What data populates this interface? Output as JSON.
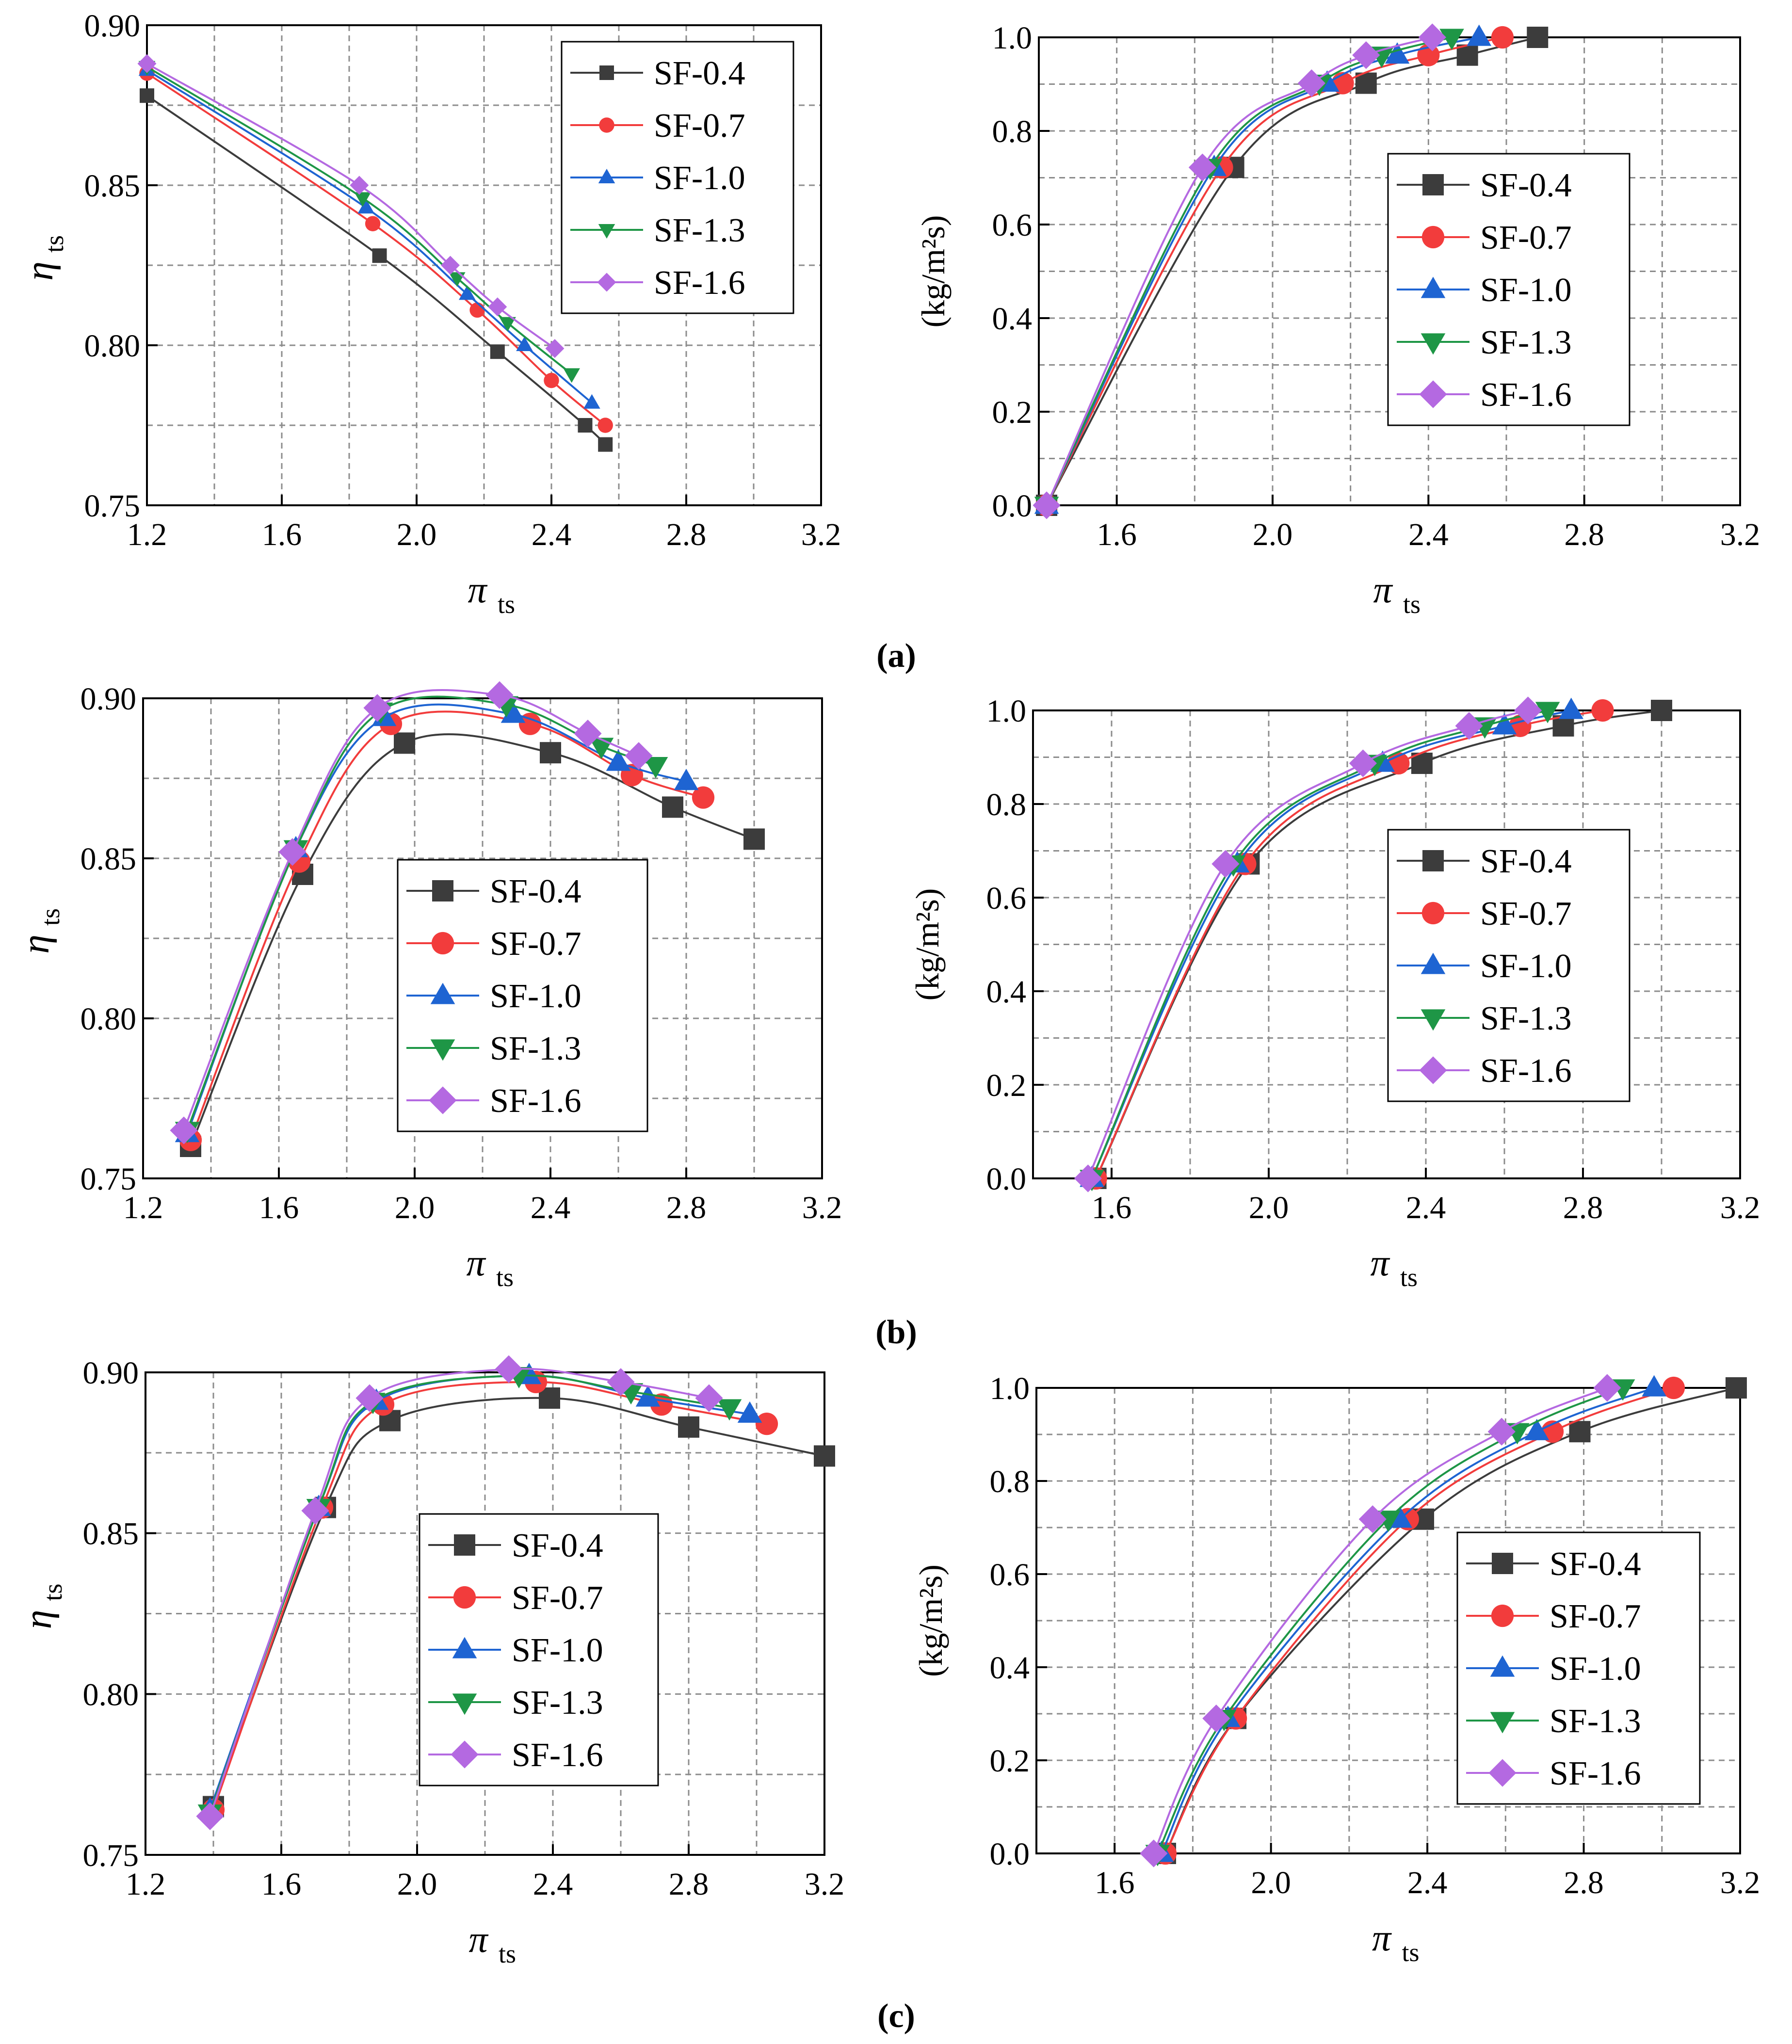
{
  "series_styles": [
    {
      "name": "SF-0.4",
      "color": "#3c3c3c",
      "marker": "square"
    },
    {
      "name": "SF-0.7",
      "color": "#f23c3c",
      "marker": "circle"
    },
    {
      "name": "SF-1.0",
      "color": "#1e64d2",
      "marker": "triangle-up"
    },
    {
      "name": "SF-1.3",
      "color": "#1e9646",
      "marker": "triangle-down"
    },
    {
      "name": "SF-1.6",
      "color": "#b469e1",
      "marker": "diamond"
    }
  ],
  "panel_labels": [
    "(a)",
    "(b)",
    "(c)"
  ],
  "chart_data": [
    {
      "id": "a-eff",
      "panel": "a",
      "type": "line",
      "xlabel": "π",
      "xlabel_sub": "ts",
      "ylabel": "η",
      "ylabel_sub": "ts",
      "xlim": [
        1.2,
        3.2
      ],
      "ylim": [
        0.75,
        0.9
      ],
      "xticks": [
        1.2,
        1.6,
        2.0,
        2.4,
        2.8,
        3.2
      ],
      "xtick_labels": [
        "1.2",
        "1.6",
        "2.0",
        "2.4",
        "2.8",
        "3.2"
      ],
      "yticks": [
        0.75,
        0.8,
        0.85,
        0.9
      ],
      "ytick_labels": [
        "0.75",
        "0.80",
        "0.85",
        "0.90"
      ],
      "grid": true,
      "legend": "top-right",
      "series": [
        {
          "name": "SF-0.4",
          "x": [
            1.2,
            1.89,
            2.24,
            2.5,
            2.56
          ],
          "y": [
            0.878,
            0.828,
            0.798,
            0.775,
            0.769
          ]
        },
        {
          "name": "SF-0.7",
          "x": [
            1.2,
            1.87,
            2.18,
            2.4,
            2.56
          ],
          "y": [
            0.885,
            0.838,
            0.811,
            0.789,
            0.775
          ]
        },
        {
          "name": "SF-1.0",
          "x": [
            1.2,
            1.85,
            2.15,
            2.32,
            2.52
          ],
          "y": [
            0.886,
            0.843,
            0.816,
            0.8,
            0.782
          ]
        },
        {
          "name": "SF-1.3",
          "x": [
            1.2,
            1.84,
            2.12,
            2.27,
            2.46
          ],
          "y": [
            0.887,
            0.846,
            0.821,
            0.807,
            0.791
          ]
        },
        {
          "name": "SF-1.6",
          "x": [
            1.2,
            1.83,
            2.1,
            2.24,
            2.41
          ],
          "y": [
            0.888,
            0.85,
            0.825,
            0.812,
            0.799
          ]
        }
      ]
    },
    {
      "id": "a-flow",
      "panel": "a",
      "type": "line",
      "xlabel": "π",
      "xlabel_sub": "ts",
      "ylabel": "(kg/m²s)",
      "xlim": [
        1.4,
        3.2
      ],
      "ylim": [
        0.0,
        1.0
      ],
      "xticks": [
        1.6,
        2.0,
        2.4,
        2.8,
        3.2
      ],
      "xtick_labels": [
        "1.6",
        "2.0",
        "2.4",
        "2.8",
        "3.2"
      ],
      "yticks": [
        0.0,
        0.2,
        0.4,
        0.6,
        0.8,
        1.0
      ],
      "ytick_labels": [
        "0.0",
        "0.2",
        "0.4",
        "0.6",
        "0.8",
        "1.0"
      ],
      "grid": true,
      "legend": "center-right",
      "series": [
        {
          "name": "SF-0.4",
          "x": [
            1.42,
            1.9,
            2.24,
            2.5,
            2.68
          ],
          "y": [
            0.0,
            0.722,
            0.902,
            0.962,
            1.0
          ]
        },
        {
          "name": "SF-0.7",
          "x": [
            1.42,
            1.87,
            2.18,
            2.4,
            2.59
          ],
          "y": [
            0.0,
            0.722,
            0.902,
            0.962,
            1.0
          ]
        },
        {
          "name": "SF-1.0",
          "x": [
            1.42,
            1.85,
            2.14,
            2.32,
            2.53
          ],
          "y": [
            0.0,
            0.722,
            0.902,
            0.962,
            1.0
          ]
        },
        {
          "name": "SF-1.3",
          "x": [
            1.42,
            1.84,
            2.12,
            2.28,
            2.46
          ],
          "y": [
            0.0,
            0.722,
            0.902,
            0.962,
            1.0
          ]
        },
        {
          "name": "SF-1.6",
          "x": [
            1.42,
            1.82,
            2.1,
            2.24,
            2.41
          ],
          "y": [
            0.0,
            0.722,
            0.902,
            0.962,
            1.0
          ]
        }
      ]
    },
    {
      "id": "b-eff",
      "panel": "b",
      "type": "line",
      "xlabel": "π",
      "xlabel_sub": "ts",
      "ylabel": "η",
      "ylabel_sub": "ts",
      "xlim": [
        1.2,
        3.2
      ],
      "ylim": [
        0.75,
        0.9
      ],
      "xticks": [
        1.2,
        1.6,
        2.0,
        2.4,
        2.8,
        3.2
      ],
      "xtick_labels": [
        "1.2",
        "1.6",
        "2.0",
        "2.4",
        "2.8",
        "3.2"
      ],
      "yticks": [
        0.75,
        0.8,
        0.85,
        0.9
      ],
      "ytick_labels": [
        "0.75",
        "0.80",
        "0.85",
        "0.90"
      ],
      "grid": true,
      "legend": "center",
      "series": [
        {
          "name": "SF-0.4",
          "x": [
            1.34,
            1.67,
            1.97,
            2.4,
            2.76,
            3.0
          ],
          "y": [
            0.76,
            0.845,
            0.886,
            0.883,
            0.866,
            0.856
          ]
        },
        {
          "name": "SF-0.7",
          "x": [
            1.34,
            1.66,
            1.93,
            2.34,
            2.64,
            2.85
          ],
          "y": [
            0.762,
            0.849,
            0.892,
            0.892,
            0.876,
            0.869
          ]
        },
        {
          "name": "SF-1.0",
          "x": [
            1.33,
            1.65,
            1.91,
            2.29,
            2.6,
            2.8
          ],
          "y": [
            0.764,
            0.853,
            0.894,
            0.895,
            0.88,
            0.874
          ]
        },
        {
          "name": "SF-1.3",
          "x": [
            1.33,
            1.65,
            1.9,
            2.27,
            2.55,
            2.71
          ],
          "y": [
            0.765,
            0.853,
            0.896,
            0.898,
            0.885,
            0.879
          ]
        },
        {
          "name": "SF-1.6",
          "x": [
            1.32,
            1.64,
            1.89,
            2.25,
            2.51,
            2.66
          ],
          "y": [
            0.765,
            0.852,
            0.897,
            0.901,
            0.889,
            0.882
          ]
        }
      ]
    },
    {
      "id": "b-flow",
      "panel": "b",
      "type": "line",
      "xlabel": "π",
      "xlabel_sub": "ts",
      "ylabel": "(kg/m²s)",
      "xlim": [
        1.4,
        3.2
      ],
      "ylim": [
        0.0,
        1.0
      ],
      "xticks": [
        1.6,
        2.0,
        2.4,
        2.8,
        3.2
      ],
      "xtick_labels": [
        "1.6",
        "2.0",
        "2.4",
        "2.8",
        "3.2"
      ],
      "yticks": [
        0.0,
        0.2,
        0.4,
        0.6,
        0.8,
        1.0
      ],
      "ytick_labels": [
        "0.0",
        "0.2",
        "0.4",
        "0.6",
        "0.8",
        "1.0"
      ],
      "grid": true,
      "legend": "center-right",
      "series": [
        {
          "name": "SF-0.4",
          "x": [
            1.56,
            1.95,
            2.39,
            2.75,
            3.0
          ],
          "y": [
            0.0,
            0.672,
            0.887,
            0.967,
            1.0
          ]
        },
        {
          "name": "SF-0.7",
          "x": [
            1.56,
            1.94,
            2.33,
            2.64,
            2.85
          ],
          "y": [
            0.0,
            0.672,
            0.887,
            0.967,
            1.0
          ]
        },
        {
          "name": "SF-1.0",
          "x": [
            1.55,
            1.92,
            2.29,
            2.6,
            2.77
          ],
          "y": [
            0.0,
            0.672,
            0.887,
            0.967,
            1.0
          ]
        },
        {
          "name": "SF-1.3",
          "x": [
            1.55,
            1.91,
            2.27,
            2.55,
            2.71
          ],
          "y": [
            0.0,
            0.672,
            0.887,
            0.967,
            1.0
          ]
        },
        {
          "name": "SF-1.6",
          "x": [
            1.54,
            1.89,
            2.24,
            2.51,
            2.66
          ],
          "y": [
            0.0,
            0.672,
            0.887,
            0.967,
            1.0
          ]
        }
      ]
    },
    {
      "id": "c-eff",
      "panel": "c",
      "type": "line",
      "xlabel": "π",
      "xlabel_sub": "ts",
      "ylabel": "η",
      "ylabel_sub": "ts",
      "xlim": [
        1.2,
        3.2
      ],
      "ylim": [
        0.75,
        0.9
      ],
      "xticks": [
        1.2,
        1.6,
        2.0,
        2.4,
        2.8,
        3.2
      ],
      "xtick_labels": [
        "1.2",
        "1.6",
        "2.0",
        "2.4",
        "2.8",
        "3.2"
      ],
      "yticks": [
        0.75,
        0.8,
        0.85,
        0.9
      ],
      "ytick_labels": [
        "0.75",
        "0.80",
        "0.85",
        "0.90"
      ],
      "grid": true,
      "legend": "center",
      "series": [
        {
          "name": "SF-0.4",
          "x": [
            1.4,
            1.73,
            1.92,
            2.39,
            2.8,
            3.2
          ],
          "y": [
            0.765,
            0.858,
            0.885,
            0.892,
            0.883,
            0.874
          ]
        },
        {
          "name": "SF-0.7",
          "x": [
            1.4,
            1.72,
            1.9,
            2.35,
            2.72,
            3.03
          ],
          "y": [
            0.764,
            0.858,
            0.89,
            0.897,
            0.89,
            0.884
          ]
        },
        {
          "name": "SF-1.0",
          "x": [
            1.39,
            1.71,
            1.88,
            2.33,
            2.68,
            2.98
          ],
          "y": [
            0.764,
            0.858,
            0.891,
            0.899,
            0.892,
            0.887
          ]
        },
        {
          "name": "SF-1.3",
          "x": [
            1.39,
            1.71,
            1.87,
            2.3,
            2.63,
            2.92
          ],
          "y": [
            0.763,
            0.858,
            0.891,
            0.899,
            0.894,
            0.889
          ]
        },
        {
          "name": "SF-1.6",
          "x": [
            1.39,
            1.7,
            1.86,
            2.27,
            2.6,
            2.86
          ],
          "y": [
            0.762,
            0.857,
            0.892,
            0.901,
            0.897,
            0.892
          ]
        }
      ]
    },
    {
      "id": "c-flow",
      "panel": "c",
      "type": "line",
      "xlabel": "π",
      "xlabel_sub": "ts",
      "ylabel": "(kg/m²s)",
      "xlim": [
        1.4,
        3.2
      ],
      "ylim": [
        0.0,
        1.0
      ],
      "xticks": [
        1.6,
        2.0,
        2.4,
        2.8,
        3.2
      ],
      "xtick_labels": [
        "1.6",
        "2.0",
        "2.4",
        "2.8",
        "3.2"
      ],
      "yticks": [
        0.0,
        0.2,
        0.4,
        0.6,
        0.8,
        1.0
      ],
      "ytick_labels": [
        "0.0",
        "0.2",
        "0.4",
        "0.6",
        "0.8",
        "1.0"
      ],
      "grid": true,
      "legend": "bottom-right",
      "series": [
        {
          "name": "SF-0.4",
          "x": [
            1.73,
            1.91,
            2.39,
            2.79,
            3.19
          ],
          "y": [
            0.0,
            0.29,
            0.718,
            0.906,
            1.0
          ]
        },
        {
          "name": "SF-0.7",
          "x": [
            1.73,
            1.91,
            2.35,
            2.72,
            3.03
          ],
          "y": [
            0.0,
            0.29,
            0.718,
            0.906,
            1.0
          ]
        },
        {
          "name": "SF-1.0",
          "x": [
            1.72,
            1.89,
            2.33,
            2.68,
            2.98
          ],
          "y": [
            0.0,
            0.29,
            0.718,
            0.906,
            1.0
          ]
        },
        {
          "name": "SF-1.3",
          "x": [
            1.71,
            1.88,
            2.3,
            2.63,
            2.9
          ],
          "y": [
            0.0,
            0.29,
            0.718,
            0.906,
            1.0
          ]
        },
        {
          "name": "SF-1.6",
          "x": [
            1.7,
            1.86,
            2.26,
            2.59,
            2.86
          ],
          "y": [
            0.0,
            0.29,
            0.718,
            0.906,
            1.0
          ]
        }
      ]
    }
  ]
}
